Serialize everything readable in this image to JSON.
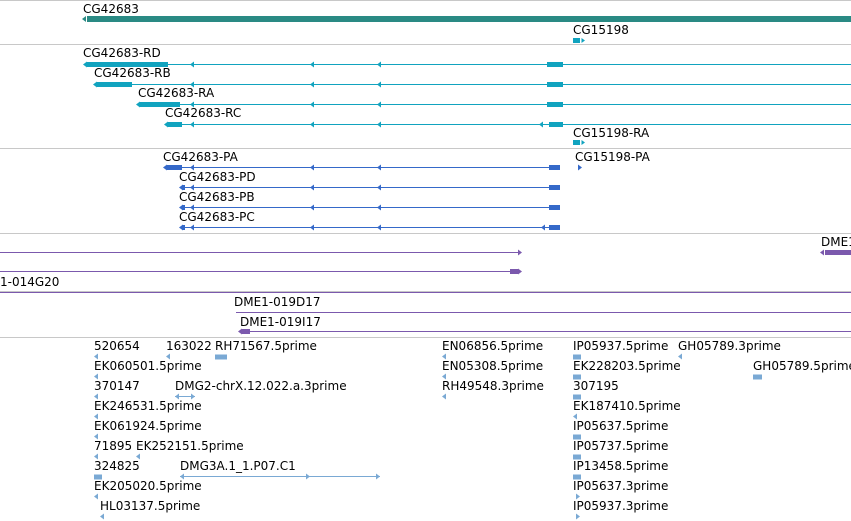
{
  "colors": {
    "gene": "#2a8a84",
    "rna_teal": "#11a3bf",
    "protein": "#3569c9",
    "clone": "#7b59ad",
    "est": "#7aa9d4",
    "divider": "#c8c8c8"
  },
  "tracks": {
    "gene": {
      "labels": [
        "CG42683",
        "CG15198"
      ]
    },
    "mrna": {
      "labels": [
        "CG42683-RD",
        "CG42683-RB",
        "CG42683-RA",
        "CG42683-RC",
        "CG15198-RA"
      ]
    },
    "polypeptide": {
      "labels": [
        "CG42683-PA",
        "CG15198-PA",
        "CG42683-PD",
        "CG42683-PB",
        "CG42683-PC"
      ]
    },
    "clone": {
      "labels": [
        "DME1",
        "1-014G20"
      ]
    },
    "clone2": {
      "labels": [
        "DME1-019D17",
        "DME1-019I17"
      ]
    },
    "est": {
      "labels": [
        "520654",
        "163022",
        "RH71567.5prime",
        "EN06856.5prime",
        "IP05937.5prime",
        "GH05789.3prime",
        "EK060501.5prime",
        "EN05308.5prime",
        "EK228203.5prime",
        "GH05789.5prime",
        "370147",
        "DMG2-chrX.12.022.a.3prime",
        "RH49548.3prime",
        "307195",
        "EK246531.5prime",
        "EK187410.5prime",
        "EK061924.5prime",
        "IP05637.5prime",
        "71895",
        "EK252151.5prime",
        "IP05737.5prime",
        "324825",
        "DMG3A.1_1.P07.C1",
        "IP13458.5prime",
        "EK205020.5prime",
        "IP05637.3prime",
        "HL03137.5prime",
        "IP05937.3prime"
      ]
    }
  }
}
